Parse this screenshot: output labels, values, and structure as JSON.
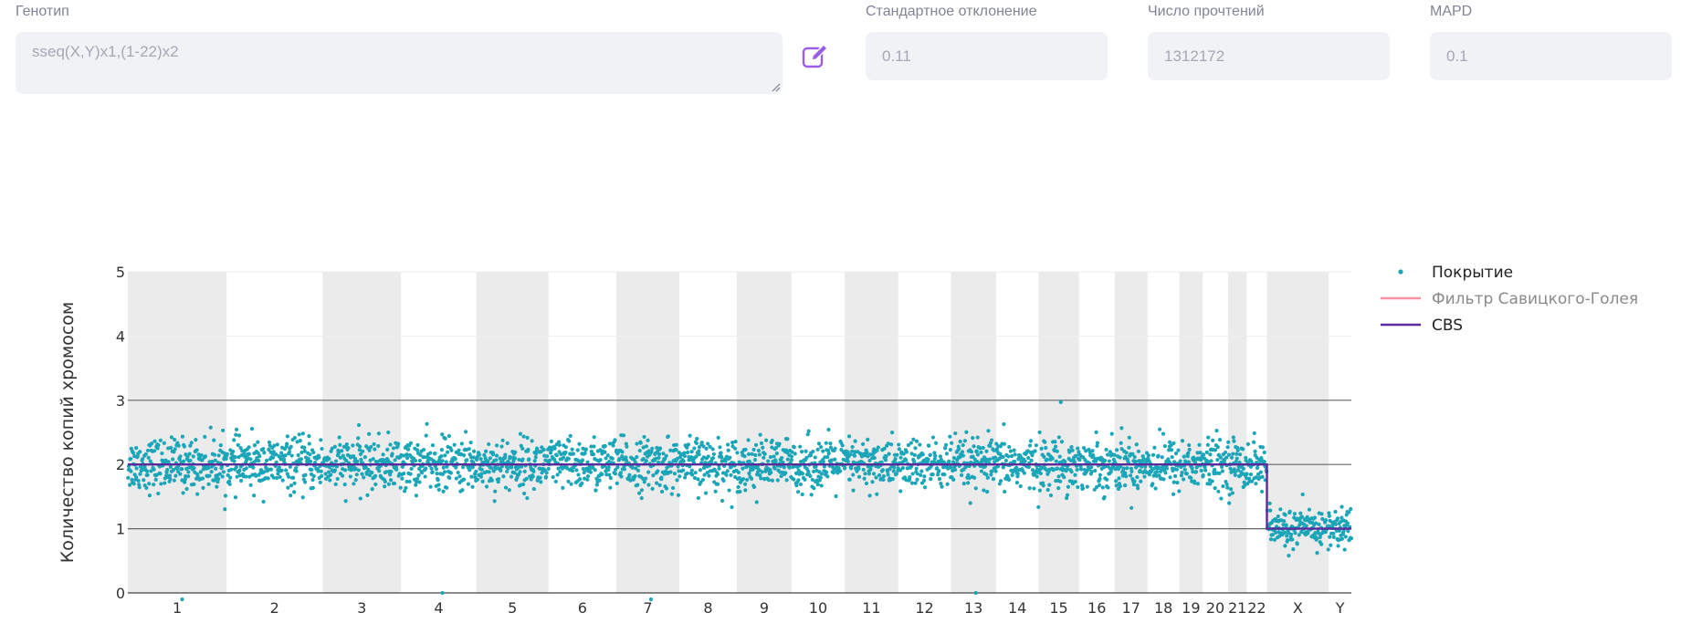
{
  "form": {
    "genotype_label": "Генотип",
    "genotype_value": "sseq(X,Y)x1,(1-22)x2",
    "std_label": "Стандартное отклонение",
    "std_value": "0.11",
    "reads_label": "Число прочтений",
    "reads_value": "1312172",
    "mapd_label": "MAPD",
    "mapd_value": "0.1",
    "edit_icon": "edit-pencil-icon",
    "accent_color": "#9b5de5"
  },
  "chart_data": {
    "type": "scatter",
    "ylabel": "Количество копий хромосом",
    "ylim": [
      0,
      5
    ],
    "yticks": [
      "0",
      "1",
      "2",
      "3",
      "4",
      "5"
    ],
    "chromosomes": [
      "1",
      "2",
      "3",
      "4",
      "5",
      "6",
      "7",
      "8",
      "9",
      "10",
      "11",
      "12",
      "13",
      "14",
      "15",
      "16",
      "17",
      "18",
      "19",
      "20",
      "21",
      "22",
      "X",
      "Y"
    ],
    "chromosome_lengths_mb": [
      249,
      242,
      198,
      190,
      182,
      171,
      159,
      145,
      138,
      134,
      135,
      133,
      114,
      107,
      102,
      90,
      83,
      80,
      59,
      64,
      47,
      51,
      156,
      57
    ],
    "shaded_chromosomes": [
      "1",
      "3",
      "5",
      "7",
      "9",
      "11",
      "13",
      "15",
      "17",
      "19",
      "21",
      "X"
    ],
    "series": [
      {
        "name": "Покрытие",
        "kind": "points",
        "color": "#1aa5b8",
        "mean_by_chromosome": [
          2,
          2,
          2,
          2,
          2,
          2,
          2,
          2,
          2,
          2,
          2,
          2,
          2,
          2,
          2,
          2,
          2,
          2,
          2,
          2,
          2,
          2,
          1,
          1
        ],
        "spread": [
          0.2,
          0.2,
          0.2,
          0.2,
          0.2,
          0.2,
          0.2,
          0.2,
          0.2,
          0.2,
          0.2,
          0.2,
          0.2,
          0.2,
          0.2,
          0.2,
          0.2,
          0.2,
          0.2,
          0.2,
          0.2,
          0.2,
          0.15,
          0.15
        ]
      },
      {
        "name": "Фильтр Савицкого-Голея",
        "kind": "line",
        "color": "#ff8fa3"
      },
      {
        "name": "CBS",
        "kind": "step",
        "color": "#5b2a9c",
        "values_by_chromosome": [
          2,
          2,
          2,
          2,
          2,
          2,
          2,
          2,
          2,
          2,
          2,
          2,
          2,
          2,
          2,
          2,
          2,
          2,
          2,
          2,
          2,
          2,
          1,
          1
        ]
      }
    ],
    "outliers": [
      {
        "chromosome": "1",
        "value": -0.1
      },
      {
        "chromosome": "4",
        "value": 0.0
      },
      {
        "chromosome": "7",
        "value": -0.1
      },
      {
        "chromosome": "13",
        "value": 0.0
      },
      {
        "chromosome": "15",
        "value": 2.97
      }
    ],
    "grid": true,
    "legend_position": "top-right"
  }
}
